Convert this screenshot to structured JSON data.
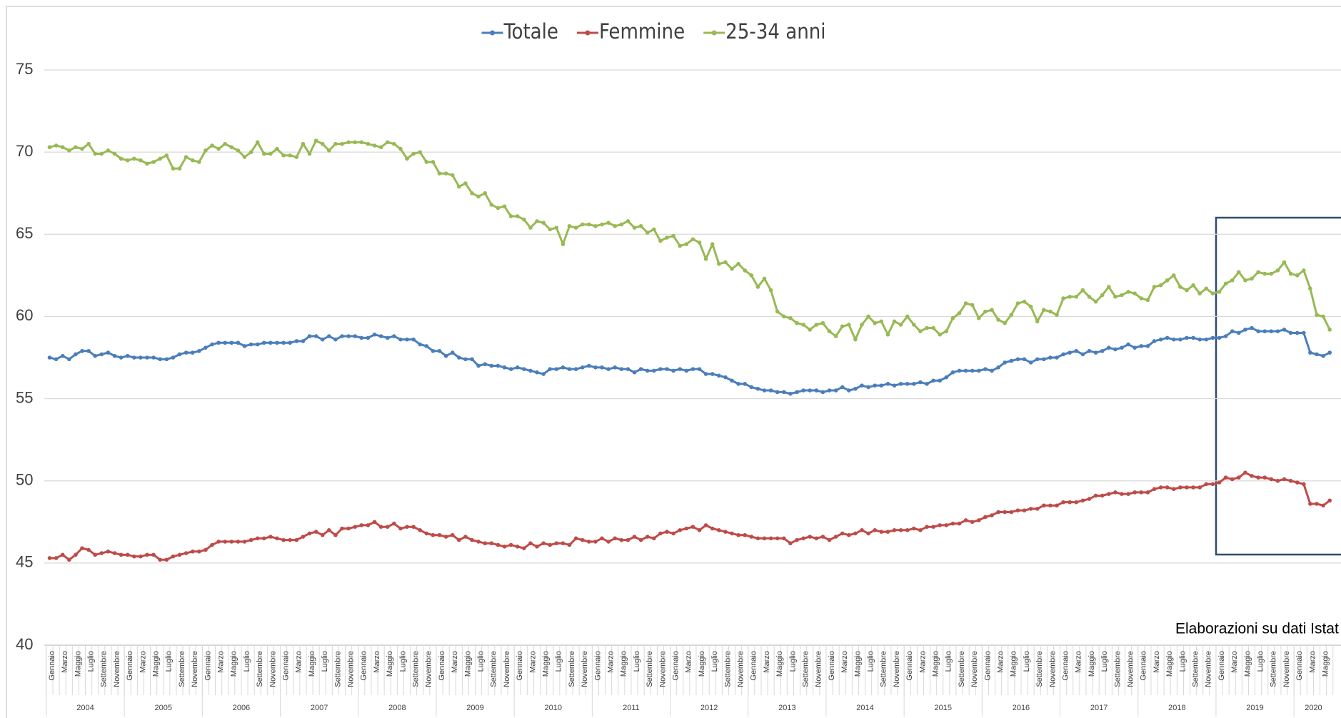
{
  "chart_data": {
    "type": "line",
    "source": "Elaborazioni su dati Istat",
    "ylim": [
      40,
      75
    ],
    "yticks": [
      40,
      45,
      50,
      55,
      60,
      65,
      70,
      75
    ],
    "grid": true,
    "legend": "top",
    "categories": [
      "Gennaio",
      null,
      "Marzo",
      null,
      "Maggio",
      null,
      "Luglio",
      null,
      "Settembre",
      null,
      "Novembre",
      null,
      "Gennaio",
      null,
      "Marzo",
      null,
      "Maggio",
      null,
      "Luglio",
      null,
      "Settembre",
      null,
      "Novembre",
      null,
      "Gennaio",
      null,
      "Marzo",
      null,
      "Maggio",
      null,
      "Luglio",
      null,
      "Settembre",
      null,
      "Novembre",
      null,
      "Gennaio",
      null,
      "Marzo",
      null,
      "Maggio",
      null,
      "Luglio",
      null,
      "Settembre",
      null,
      "Novembre",
      null,
      "Gennaio",
      null,
      "Marzo",
      null,
      "Maggio",
      null,
      "Luglio",
      null,
      "Settembre",
      null,
      "Novembre",
      null,
      "Gennaio",
      null,
      "Marzo",
      null,
      "Maggio",
      null,
      "Luglio",
      null,
      "Settembre",
      null,
      "Novembre",
      null,
      "Gennaio",
      null,
      "Marzo",
      null,
      "Maggio",
      null,
      "Luglio",
      null,
      "Settembre",
      null,
      "Novembre",
      null,
      "Gennaio",
      null,
      "Marzo",
      null,
      "Maggio",
      null,
      "Luglio",
      null,
      "Settembre",
      null,
      "Novembre",
      null,
      "Gennaio",
      null,
      "Marzo",
      null,
      "Maggio",
      null,
      "Luglio",
      null,
      "Settembre",
      null,
      "Novembre",
      null,
      "Gennaio",
      null,
      "Marzo",
      null,
      "Maggio",
      null,
      "Luglio",
      null,
      "Settembre",
      null,
      "Novembre",
      null,
      "Gennaio",
      null,
      "Marzo",
      null,
      "Maggio",
      null,
      "Luglio",
      null,
      "Settembre",
      null,
      "Novembre",
      null,
      "Gennaio",
      null,
      "Marzo",
      null,
      "Maggio",
      null,
      "Luglio",
      null,
      "Settembre",
      null,
      "Novembre",
      null,
      "Gennaio",
      null,
      "Marzo",
      null,
      "Maggio",
      null,
      "Luglio",
      null,
      "Settembre",
      null,
      "Novembre",
      null,
      "Gennaio",
      null,
      "Marzo",
      null,
      "Maggio",
      null,
      "Luglio",
      null,
      "Settembre",
      null,
      "Novembre",
      null,
      "Gennaio",
      null,
      "Marzo",
      null,
      "Maggio",
      null,
      "Luglio",
      null,
      "Settembre",
      null,
      "Novembre",
      null,
      "Gennaio",
      null,
      "Marzo",
      null,
      "Maggio",
      null,
      "Luglio",
      null,
      "Settembre",
      null,
      "Novembre",
      null,
      "Gennaio",
      null,
      "Marzo",
      null,
      "Maggio",
      null
    ],
    "years": [
      "2004",
      "2005",
      "2006",
      "2007",
      "2008",
      "2009",
      "2010",
      "2011",
      "2012",
      "2013",
      "2014",
      "2015",
      "2016",
      "2017",
      "2018",
      "2019",
      "2020"
    ],
    "series": [
      {
        "name": "Totale",
        "color": "#4a7ebb",
        "values": [
          57.5,
          57.4,
          57.6,
          57.4,
          57.7,
          57.9,
          57.9,
          57.6,
          57.7,
          57.8,
          57.6,
          57.5,
          57.6,
          57.5,
          57.5,
          57.5,
          57.5,
          57.4,
          57.4,
          57.5,
          57.7,
          57.8,
          57.8,
          57.9,
          58.1,
          58.3,
          58.4,
          58.4,
          58.4,
          58.4,
          58.2,
          58.3,
          58.3,
          58.4,
          58.4,
          58.4,
          58.4,
          58.4,
          58.5,
          58.5,
          58.8,
          58.8,
          58.6,
          58.8,
          58.6,
          58.8,
          58.8,
          58.8,
          58.7,
          58.7,
          58.9,
          58.8,
          58.7,
          58.8,
          58.6,
          58.6,
          58.6,
          58.3,
          58.2,
          57.9,
          57.9,
          57.6,
          57.8,
          57.5,
          57.4,
          57.4,
          57.0,
          57.1,
          57.0,
          57.0,
          56.9,
          56.8,
          56.9,
          56.8,
          56.7,
          56.6,
          56.5,
          56.8,
          56.8,
          56.9,
          56.8,
          56.8,
          56.9,
          57.0,
          56.9,
          56.9,
          56.8,
          56.9,
          56.8,
          56.8,
          56.6,
          56.8,
          56.7,
          56.7,
          56.8,
          56.8,
          56.7,
          56.8,
          56.7,
          56.8,
          56.8,
          56.5,
          56.5,
          56.4,
          56.3,
          56.1,
          55.9,
          55.9,
          55.7,
          55.6,
          55.5,
          55.5,
          55.4,
          55.4,
          55.3,
          55.4,
          55.5,
          55.5,
          55.5,
          55.4,
          55.5,
          55.5,
          55.7,
          55.5,
          55.6,
          55.8,
          55.7,
          55.8,
          55.8,
          55.9,
          55.8,
          55.9,
          55.9,
          55.9,
          56.0,
          55.9,
          56.1,
          56.1,
          56.3,
          56.6,
          56.7,
          56.7,
          56.7,
          56.7,
          56.8,
          56.7,
          56.9,
          57.2,
          57.3,
          57.4,
          57.4,
          57.2,
          57.4,
          57.4,
          57.5,
          57.5,
          57.7,
          57.8,
          57.9,
          57.7,
          57.9,
          57.8,
          57.9,
          58.1,
          58.0,
          58.1,
          58.3,
          58.1,
          58.2,
          58.2,
          58.5,
          58.6,
          58.7,
          58.6,
          58.6,
          58.7,
          58.7,
          58.6,
          58.6,
          58.7,
          58.7,
          58.8,
          59.1,
          59.0,
          59.2,
          59.3,
          59.1,
          59.1,
          59.1,
          59.1,
          59.2,
          59.0,
          59.0,
          59.0,
          57.8,
          57.7,
          57.6,
          57.8
        ]
      },
      {
        "name": "Femmine",
        "color": "#be4b48",
        "values": [
          45.3,
          45.3,
          45.5,
          45.2,
          45.5,
          45.9,
          45.8,
          45.5,
          45.6,
          45.7,
          45.6,
          45.5,
          45.5,
          45.4,
          45.4,
          45.5,
          45.5,
          45.2,
          45.2,
          45.4,
          45.5,
          45.6,
          45.7,
          45.7,
          45.8,
          46.1,
          46.3,
          46.3,
          46.3,
          46.3,
          46.3,
          46.4,
          46.5,
          46.5,
          46.6,
          46.5,
          46.4,
          46.4,
          46.4,
          46.6,
          46.8,
          46.9,
          46.7,
          47.0,
          46.7,
          47.1,
          47.1,
          47.2,
          47.3,
          47.3,
          47.5,
          47.2,
          47.2,
          47.4,
          47.1,
          47.2,
          47.2,
          47.0,
          46.8,
          46.7,
          46.7,
          46.6,
          46.7,
          46.4,
          46.6,
          46.4,
          46.3,
          46.2,
          46.2,
          46.1,
          46.0,
          46.1,
          46.0,
          45.9,
          46.2,
          46.0,
          46.2,
          46.1,
          46.2,
          46.2,
          46.1,
          46.5,
          46.4,
          46.3,
          46.3,
          46.5,
          46.3,
          46.5,
          46.4,
          46.4,
          46.6,
          46.4,
          46.6,
          46.5,
          46.8,
          46.9,
          46.8,
          47.0,
          47.1,
          47.2,
          47.0,
          47.3,
          47.1,
          47.0,
          46.9,
          46.8,
          46.7,
          46.7,
          46.6,
          46.5,
          46.5,
          46.5,
          46.5,
          46.5,
          46.2,
          46.4,
          46.5,
          46.6,
          46.5,
          46.6,
          46.4,
          46.6,
          46.8,
          46.7,
          46.8,
          47.0,
          46.8,
          47.0,
          46.9,
          46.9,
          47.0,
          47.0,
          47.0,
          47.1,
          47.0,
          47.2,
          47.2,
          47.3,
          47.3,
          47.4,
          47.4,
          47.6,
          47.5,
          47.6,
          47.8,
          47.9,
          48.1,
          48.1,
          48.1,
          48.2,
          48.2,
          48.3,
          48.3,
          48.5,
          48.5,
          48.5,
          48.7,
          48.7,
          48.7,
          48.8,
          48.9,
          49.1,
          49.1,
          49.2,
          49.3,
          49.2,
          49.2,
          49.3,
          49.3,
          49.3,
          49.5,
          49.6,
          49.6,
          49.5,
          49.6,
          49.6,
          49.6,
          49.6,
          49.8,
          49.8,
          49.9,
          50.2,
          50.1,
          50.2,
          50.5,
          50.3,
          50.2,
          50.2,
          50.1,
          50.0,
          50.1,
          50.0,
          49.9,
          49.8,
          48.6,
          48.6,
          48.5,
          48.8
        ]
      },
      {
        "name": "25-34 anni",
        "color": "#98b954",
        "values": [
          70.3,
          70.4,
          70.3,
          70.1,
          70.3,
          70.2,
          70.5,
          69.9,
          69.9,
          70.1,
          69.9,
          69.6,
          69.5,
          69.6,
          69.5,
          69.3,
          69.4,
          69.6,
          69.8,
          69.0,
          69.0,
          69.7,
          69.5,
          69.4,
          70.1,
          70.4,
          70.2,
          70.5,
          70.3,
          70.1,
          69.7,
          70.0,
          70.6,
          69.9,
          69.9,
          70.2,
          69.8,
          69.8,
          69.7,
          70.5,
          69.9,
          70.7,
          70.5,
          70.1,
          70.5,
          70.5,
          70.6,
          70.6,
          70.6,
          70.5,
          70.4,
          70.3,
          70.6,
          70.5,
          70.2,
          69.6,
          69.9,
          70.0,
          69.4,
          69.4,
          68.7,
          68.7,
          68.6,
          67.9,
          68.1,
          67.5,
          67.3,
          67.5,
          66.8,
          66.6,
          66.7,
          66.1,
          66.1,
          65.9,
          65.4,
          65.8,
          65.7,
          65.3,
          65.4,
          64.4,
          65.5,
          65.4,
          65.6,
          65.6,
          65.5,
          65.6,
          65.7,
          65.5,
          65.6,
          65.8,
          65.4,
          65.5,
          65.1,
          65.3,
          64.6,
          64.8,
          64.9,
          64.3,
          64.4,
          64.7,
          64.5,
          63.5,
          64.4,
          63.2,
          63.3,
          62.9,
          63.2,
          62.8,
          62.5,
          61.8,
          62.3,
          61.6,
          60.3,
          60.0,
          59.9,
          59.6,
          59.5,
          59.2,
          59.5,
          59.6,
          59.1,
          58.8,
          59.4,
          59.5,
          58.6,
          59.5,
          60.0,
          59.6,
          59.7,
          58.9,
          59.7,
          59.5,
          60.0,
          59.5,
          59.1,
          59.3,
          59.3,
          58.9,
          59.1,
          59.9,
          60.2,
          60.8,
          60.7,
          59.9,
          60.3,
          60.4,
          59.8,
          59.6,
          60.1,
          60.8,
          60.9,
          60.6,
          59.7,
          60.4,
          60.3,
          60.1,
          61.1,
          61.2,
          61.2,
          61.6,
          61.2,
          60.9,
          61.3,
          61.8,
          61.2,
          61.3,
          61.5,
          61.4,
          61.1,
          61.0,
          61.8,
          61.9,
          62.2,
          62.5,
          61.8,
          61.6,
          61.9,
          61.4,
          61.7,
          61.4,
          61.5,
          62.0,
          62.2,
          62.7,
          62.2,
          62.3,
          62.7,
          62.6,
          62.6,
          62.8,
          63.3,
          62.6,
          62.5,
          62.8,
          61.7,
          60.1,
          60.0,
          59.2
        ]
      }
    ]
  }
}
